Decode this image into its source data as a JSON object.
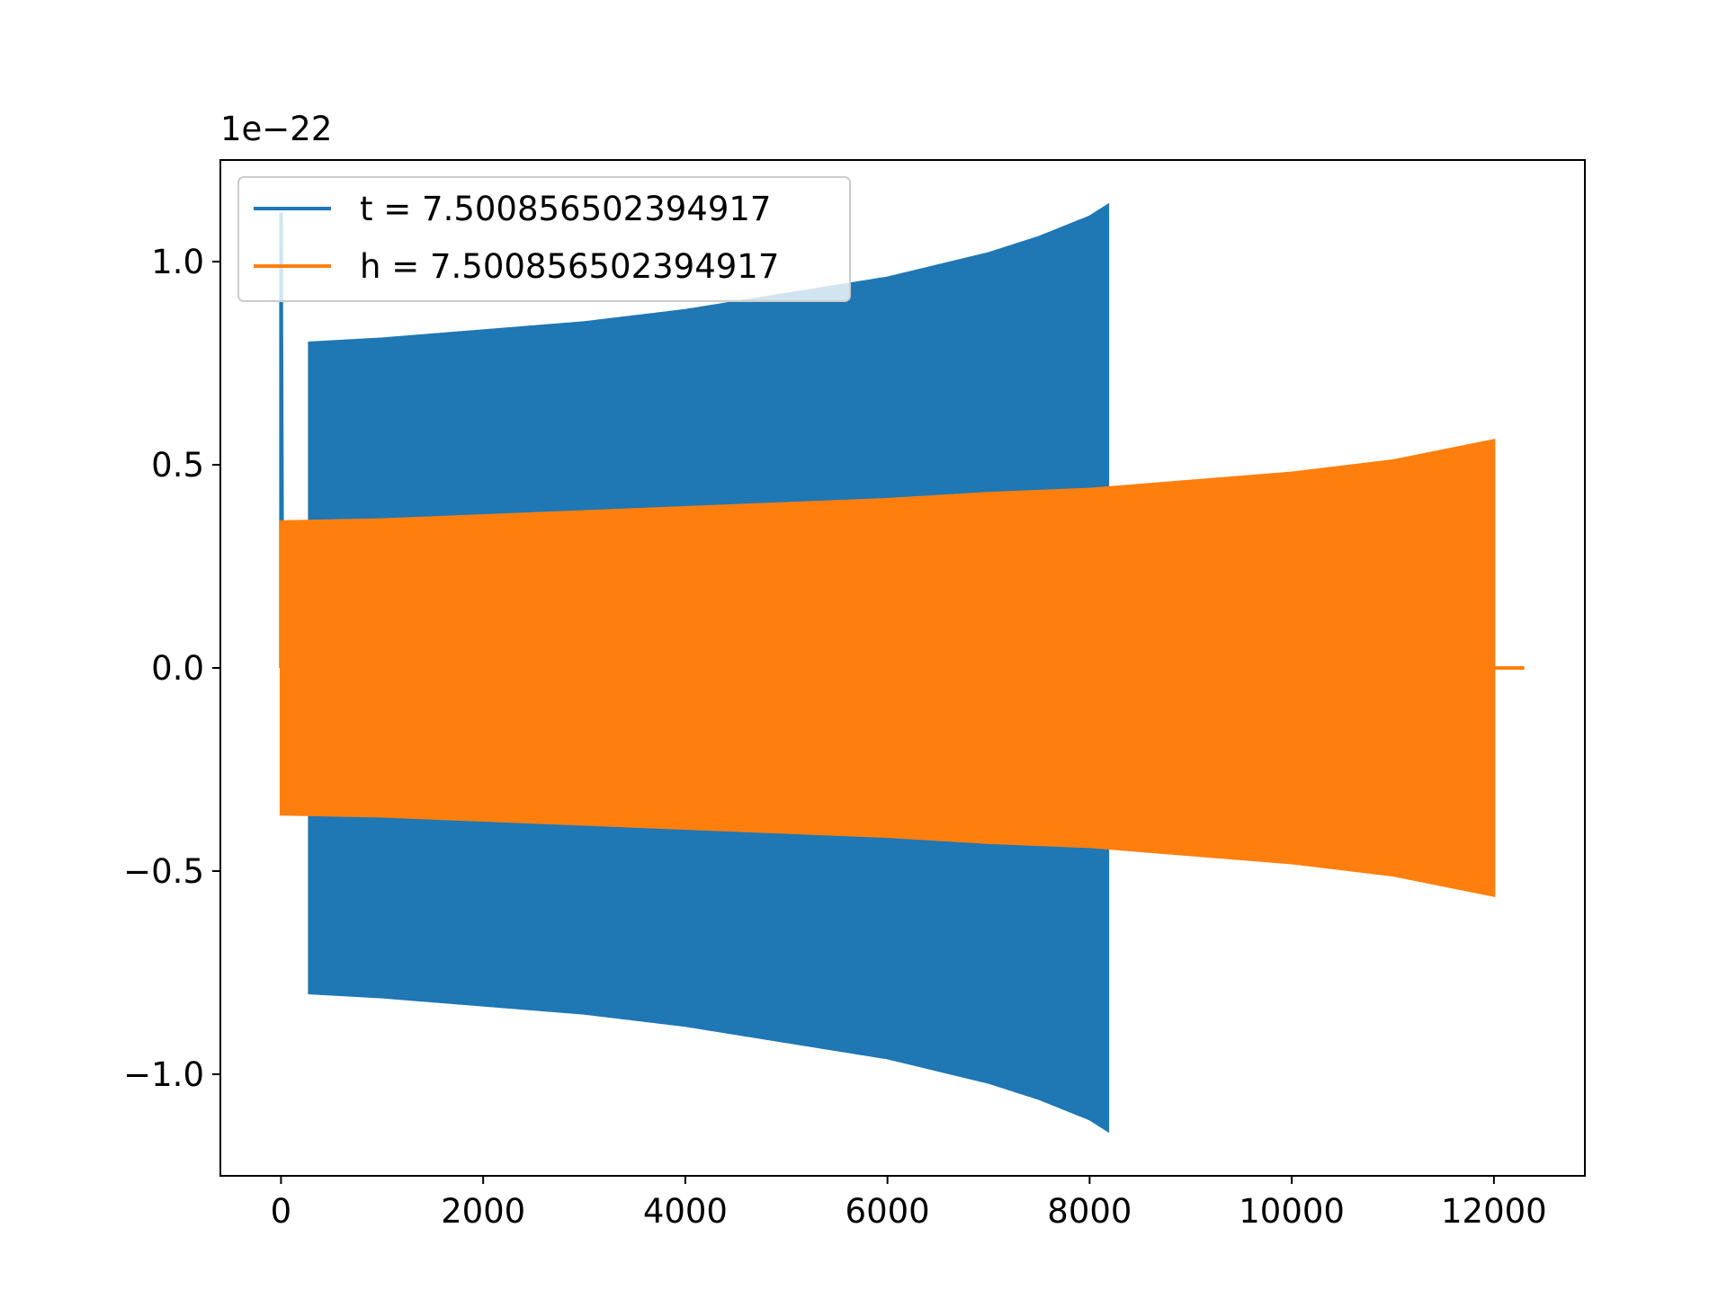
{
  "chart_data": {
    "type": "line",
    "title": "",
    "xlabel": "",
    "ylabel": "",
    "y_offset_text": "1e−22",
    "xlim": [
      -600,
      12900
    ],
    "ylim": [
      -1.25,
      1.25
    ],
    "x_ticks": [
      {
        "value": 0,
        "label": "0"
      },
      {
        "value": 2000,
        "label": "2000"
      },
      {
        "value": 4000,
        "label": "4000"
      },
      {
        "value": 6000,
        "label": "6000"
      },
      {
        "value": 8000,
        "label": "8000"
      },
      {
        "value": 10000,
        "label": "10000"
      },
      {
        "value": 12000,
        "label": "12000"
      }
    ],
    "y_ticks": [
      {
        "value": 1.0,
        "label": "1.0"
      },
      {
        "value": 0.5,
        "label": "0.5"
      },
      {
        "value": 0.0,
        "label": "0.0"
      },
      {
        "value": -0.5,
        "label": "−0.5"
      },
      {
        "value": -1.0,
        "label": "−1.0"
      }
    ],
    "grid": false,
    "legend_position": "upper-left",
    "series": [
      {
        "name": "t = 7.500856502394917",
        "color": "#1f77b4",
        "x_range": [
          0,
          8200
        ],
        "envelope_x": [
          0,
          280,
          1000,
          2000,
          3000,
          4000,
          5000,
          6000,
          7000,
          7500,
          8000,
          8190
        ],
        "envelope_amplitude": [
          1.12,
          0.8,
          0.81,
          0.83,
          0.85,
          0.88,
          0.92,
          0.96,
          1.02,
          1.06,
          1.11,
          1.14
        ]
      },
      {
        "name": "h = 7.500856502394917",
        "color": "#ff7f0e",
        "x_range": [
          0,
          12300
        ],
        "envelope_x": [
          0,
          1000,
          2000,
          3000,
          4000,
          5000,
          6000,
          7000,
          8000,
          9000,
          10000,
          11000,
          12000,
          12300
        ],
        "envelope_amplitude": [
          0.36,
          0.365,
          0.375,
          0.385,
          0.395,
          0.405,
          0.415,
          0.43,
          0.44,
          0.46,
          0.48,
          0.51,
          0.56,
          0.0
        ]
      }
    ]
  }
}
